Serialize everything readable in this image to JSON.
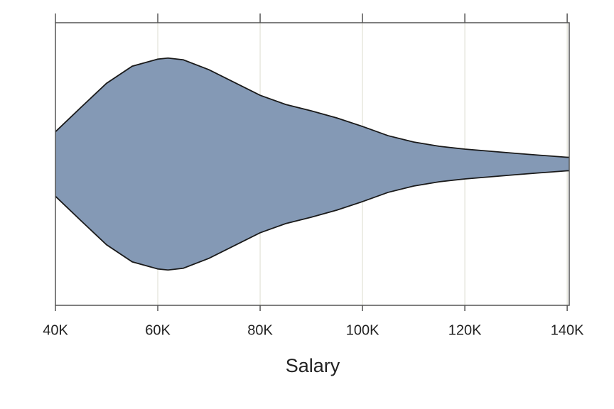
{
  "chart_data": {
    "type": "violin",
    "x_label": "Salary",
    "x": [
      40000,
      45000,
      50000,
      55000,
      60000,
      62000,
      65000,
      70000,
      75000,
      80000,
      85000,
      90000,
      95000,
      100000,
      105000,
      110000,
      115000,
      120000,
      130000,
      140000,
      140400
    ],
    "density": [
      45.5,
      80,
      114,
      138,
      148,
      149.5,
      147,
      133,
      115,
      97,
      84,
      75,
      65,
      53,
      40,
      31,
      25,
      21,
      15,
      9.5,
      9.5
    ],
    "color": "#8499b5",
    "xlim": [
      40000,
      140400
    ],
    "xticks": [
      {
        "value": 40000,
        "label": "40K"
      },
      {
        "value": 60000,
        "label": "60K"
      },
      {
        "value": 80000,
        "label": "80K"
      },
      {
        "value": 100000,
        "label": "100K"
      },
      {
        "value": 120000,
        "label": "120K"
      },
      {
        "value": 140000,
        "label": "140K"
      }
    ],
    "grid": true
  }
}
